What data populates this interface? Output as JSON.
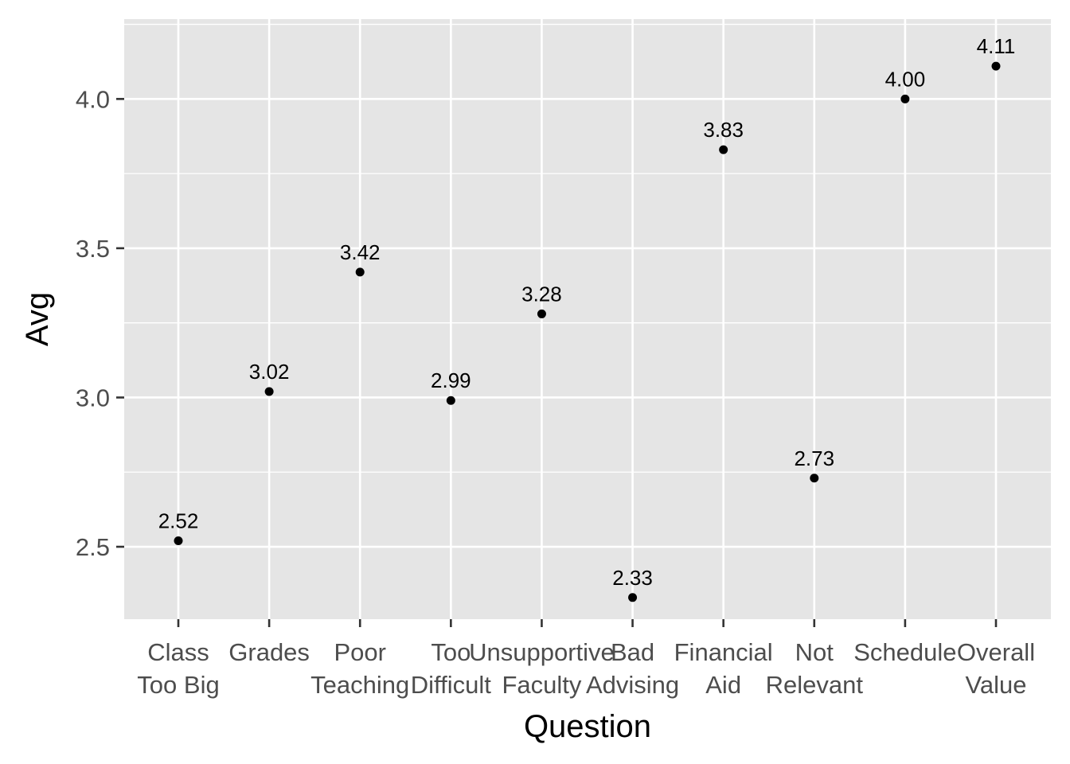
{
  "chart_data": {
    "type": "scatter",
    "xlabel": "Question",
    "ylabel": "Avg",
    "categories": [
      [
        "Class",
        "Too Big"
      ],
      [
        "Grades",
        ""
      ],
      [
        "Poor",
        "Teaching"
      ],
      [
        "Too",
        "Difficult"
      ],
      [
        "Unsupportive",
        "Faculty"
      ],
      [
        "Bad",
        "Advising"
      ],
      [
        "Financial",
        "Aid"
      ],
      [
        "Not",
        "Relevant"
      ],
      [
        "Schedule",
        ""
      ],
      [
        "Overall",
        "Value"
      ]
    ],
    "values": [
      2.52,
      3.02,
      3.42,
      2.99,
      3.28,
      2.33,
      3.83,
      2.73,
      4.0,
      4.11
    ],
    "value_labels": [
      "2.52",
      "3.02",
      "3.42",
      "2.99",
      "3.28",
      "2.33",
      "3.83",
      "2.73",
      "4.00",
      "4.11"
    ],
    "yticks": [
      2.5,
      3.0,
      3.5,
      4.0
    ],
    "ytick_labels": [
      "2.5",
      "3.0",
      "3.5",
      "4.0"
    ],
    "ylim": [
      2.2575,
      4.2675
    ],
    "grid": true,
    "point_color": "#000000",
    "panel_color": "#e5e5e5"
  }
}
